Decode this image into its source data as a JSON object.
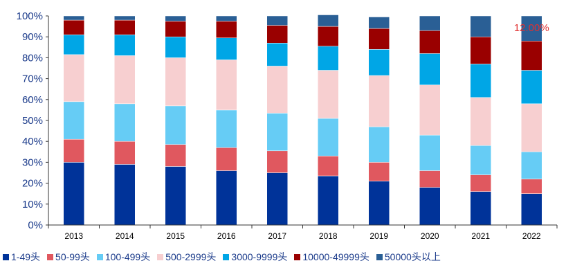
{
  "chart_data": {
    "type": "bar",
    "stacked": true,
    "categories": [
      "2013",
      "2014",
      "2015",
      "2016",
      "2017",
      "2018",
      "2019",
      "2020",
      "2021",
      "2022"
    ],
    "ylim": [
      0,
      100
    ],
    "y_ticks": [
      "0%",
      "10%",
      "20%",
      "30%",
      "40%",
      "50%",
      "60%",
      "70%",
      "80%",
      "90%",
      "100%"
    ],
    "series": [
      {
        "name": "1-49头",
        "color": "#003399",
        "values": [
          30,
          29,
          28,
          26,
          25,
          23.5,
          21,
          18,
          16,
          15
        ]
      },
      {
        "name": "50-99头",
        "color": "#e0585f",
        "values": [
          11,
          11,
          10.5,
          11,
          10.5,
          9.5,
          9,
          8,
          8,
          7
        ]
      },
      {
        "name": "100-499头",
        "color": "#66ccf5",
        "values": [
          18,
          18,
          18.5,
          18,
          18,
          18,
          17,
          17,
          14,
          13
        ]
      },
      {
        "name": "500-2999头",
        "color": "#f7cfd0",
        "values": [
          22.5,
          23,
          23,
          24,
          22.5,
          23,
          24.5,
          24,
          23,
          23
        ]
      },
      {
        "name": "3000-9999头",
        "color": "#00a6e6",
        "values": [
          9.5,
          10,
          10,
          10.5,
          11,
          11.5,
          12.5,
          15,
          16,
          16
        ]
      },
      {
        "name": "10000-49999头",
        "color": "#9a0000",
        "values": [
          7,
          7,
          7.5,
          8,
          8.5,
          9.5,
          10,
          11,
          13,
          14
        ]
      },
      {
        "name": "50000头以上",
        "color": "#2a5f95",
        "values": [
          2,
          2,
          2.5,
          2.5,
          4.5,
          5.5,
          5.5,
          7,
          10,
          12
        ]
      }
    ],
    "annotations": [
      {
        "category": "2022",
        "text": "12.00%",
        "color": "#e03030"
      }
    ],
    "grid": false,
    "legend": "bottom"
  }
}
